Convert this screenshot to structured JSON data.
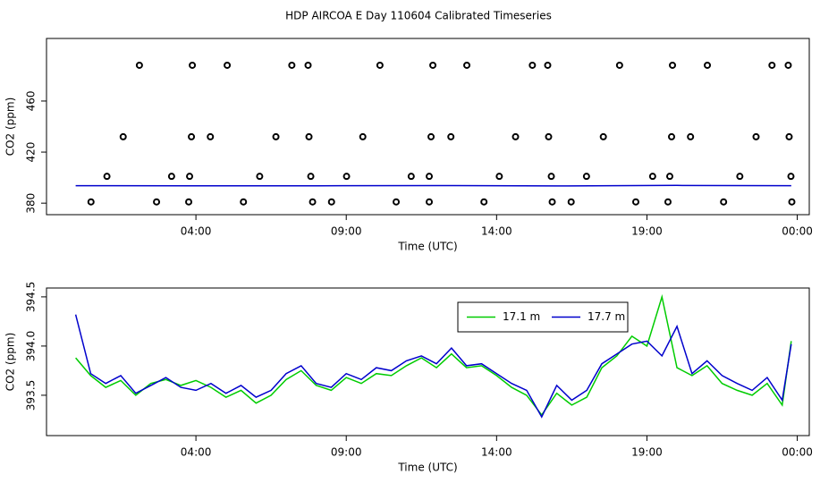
{
  "title": "HDP AIRCOA E  Day 110604  Calibrated Timeseries",
  "chart_data": [
    {
      "type": "scatter",
      "xlabel": "Time (UTC)",
      "ylabel": "CO2 (ppm)",
      "xlim": [
        -0.97,
        24.4
      ],
      "ylim": [
        371,
        509
      ],
      "xticks": [
        {
          "value": 4,
          "label": "04:00"
        },
        {
          "value": 9,
          "label": "09:00"
        },
        {
          "value": 14,
          "label": "14:00"
        },
        {
          "value": 19,
          "label": "19:00"
        },
        {
          "value": 24,
          "label": "00:00"
        }
      ],
      "yticks": [
        380,
        420,
        460
      ],
      "series": [
        {
          "type": "scatter",
          "color": "#000000",
          "x": [
            0.51,
            1.04,
            1.58,
            2.12,
            2.69,
            3.19,
            3.76,
            3.79,
            3.85,
            3.88,
            4.48,
            5.04,
            5.58,
            6.12,
            6.66,
            7.19,
            7.73,
            7.76,
            7.82,
            7.88,
            8.51,
            9.01,
            9.55,
            10.12,
            10.66,
            11.16,
            11.76,
            11.76,
            11.82,
            11.88,
            12.48,
            13.01,
            13.58,
            14.09,
            14.63,
            15.19,
            15.7,
            15.73,
            15.82,
            15.85,
            16.48,
            16.99,
            17.55,
            18.09,
            18.63,
            19.19,
            19.7,
            19.76,
            19.82,
            19.85,
            20.45,
            21.01,
            21.55,
            22.09,
            22.63,
            23.16,
            23.7,
            23.73,
            23.79,
            23.82
          ],
          "values": [
            381,
            401,
            432,
            488,
            381,
            401,
            381,
            401,
            432,
            488,
            432,
            488,
            381,
            401,
            432,
            488,
            488,
            432,
            401,
            381,
            381,
            401,
            432,
            488,
            381,
            401,
            401,
            381,
            432,
            488,
            432,
            488,
            381,
            401,
            432,
            488,
            488,
            432,
            401,
            381,
            381,
            401,
            432,
            488,
            381,
            401,
            381,
            401,
            432,
            488,
            432,
            488,
            381,
            401,
            432,
            488,
            488,
            432,
            401,
            381
          ]
        },
        {
          "type": "line",
          "color": "#0000cc",
          "x": [
            0,
            4,
            8,
            12,
            16,
            20,
            23.8
          ],
          "values": [
            393.7,
            393.6,
            393.6,
            393.8,
            393.5,
            393.9,
            393.7
          ]
        }
      ]
    },
    {
      "type": "line",
      "xlabel": "Time (UTC)",
      "ylabel": "CO2 (ppm)",
      "xlim": [
        -0.97,
        24.4
      ],
      "ylim": [
        393.09,
        394.59
      ],
      "xticks": [
        {
          "value": 4,
          "label": "04:00"
        },
        {
          "value": 9,
          "label": "09:00"
        },
        {
          "value": 14,
          "label": "14:00"
        },
        {
          "value": 19,
          "label": "19:00"
        },
        {
          "value": 24,
          "label": "00:00"
        }
      ],
      "yticks": [
        393.5,
        {
          "value": 394,
          "label": "394.0"
        },
        394.5
      ],
      "legend": "top",
      "x": [
        0,
        0.5,
        1,
        1.5,
        2,
        2.5,
        3,
        3.5,
        4,
        4.5,
        5,
        5.5,
        6,
        6.5,
        7,
        7.5,
        8,
        8.5,
        9,
        9.5,
        10,
        10.5,
        11,
        11.5,
        12,
        12.5,
        13,
        13.5,
        14,
        14.5,
        15,
        15.5,
        16,
        16.5,
        17,
        17.5,
        18,
        18.5,
        19,
        19.5,
        20,
        20.5,
        21,
        21.5,
        22,
        22.5,
        23,
        23.5,
        23.8
      ],
      "series": [
        {
          "name": "17.1 m",
          "color": "#00cc00",
          "values": [
            393.88,
            393.7,
            393.58,
            393.65,
            393.5,
            393.62,
            393.66,
            393.6,
            393.65,
            393.58,
            393.48,
            393.55,
            393.42,
            393.5,
            393.66,
            393.75,
            393.6,
            393.55,
            393.68,
            393.62,
            393.72,
            393.7,
            393.8,
            393.88,
            393.78,
            393.92,
            393.78,
            393.8,
            393.7,
            393.58,
            393.5,
            393.3,
            393.52,
            393.4,
            393.48,
            393.78,
            393.9,
            394.1,
            394.0,
            394.5,
            393.78,
            393.7,
            393.8,
            393.62,
            393.55,
            393.5,
            393.62,
            393.4,
            394.05
          ]
        },
        {
          "name": "17.7 m",
          "color": "#0000cc",
          "values": [
            394.32,
            393.72,
            393.62,
            393.7,
            393.52,
            393.6,
            393.68,
            393.58,
            393.55,
            393.62,
            393.52,
            393.6,
            393.48,
            393.55,
            393.72,
            393.8,
            393.62,
            393.58,
            393.72,
            393.66,
            393.78,
            393.75,
            393.85,
            393.9,
            393.82,
            393.98,
            393.8,
            393.82,
            393.72,
            393.62,
            393.55,
            393.28,
            393.6,
            393.45,
            393.55,
            393.82,
            393.92,
            394.02,
            394.05,
            393.9,
            394.2,
            393.72,
            393.85,
            393.7,
            393.62,
            393.55,
            393.68,
            393.45,
            394.02
          ]
        }
      ]
    }
  ]
}
